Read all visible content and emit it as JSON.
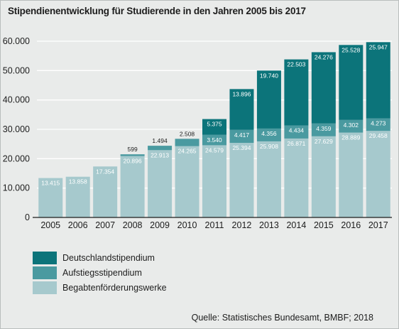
{
  "title": "Stipendienentwicklung für Studierende in den Jahren 2005 bis 2017",
  "source": "Quelle: Statistisches Bundesamt, BMBF; 2018",
  "colors": {
    "background": "#e9ebea",
    "begabten": "#a6c9cd",
    "aufstieg": "#4a9aa0",
    "deutschland": "#0c747a",
    "gridline": "#ffffff",
    "axis": "#1d1d1d"
  },
  "chart_data": {
    "type": "bar",
    "stacked": true,
    "categories": [
      "2005",
      "2006",
      "2007",
      "2008",
      "2009",
      "2010",
      "2011",
      "2012",
      "2013",
      "2014",
      "2015",
      "2016",
      "2017"
    ],
    "series": [
      {
        "name": "Begabtenförderungswerke",
        "color": "#a6c9cd",
        "values": [
          13415,
          13858,
          17354,
          20896,
          22913,
          24265,
          24579,
          25394,
          25908,
          26871,
          27629,
          28889,
          29458
        ],
        "labels": [
          "13.415",
          "13.858",
          "17.354",
          "20.896",
          "22.913",
          "24.265",
          "24.579",
          "25.394",
          "25.908",
          "26.871",
          "27.629",
          "28.889",
          "29.458"
        ]
      },
      {
        "name": "Aufstiegsstipendium",
        "color": "#4a9aa0",
        "values": [
          null,
          null,
          null,
          599,
          1494,
          2508,
          3540,
          4417,
          4356,
          4434,
          4359,
          4302,
          4273
        ],
        "labels": [
          null,
          null,
          null,
          "599",
          "1.494",
          "2.508",
          "3.540",
          "4.417",
          "4.356",
          "4.434",
          "4.359",
          "4.302",
          "4.273"
        ]
      },
      {
        "name": "Deutschlandstipendium",
        "color": "#0c747a",
        "values": [
          null,
          null,
          null,
          null,
          null,
          null,
          5375,
          13896,
          19740,
          22503,
          24276,
          25528,
          25947
        ],
        "labels": [
          null,
          null,
          null,
          null,
          null,
          null,
          "5.375",
          "13.896",
          "19.740",
          "22.503",
          "24.276",
          "25.528",
          "25.947"
        ]
      }
    ],
    "legend_order": [
      "Deutschlandstipendium",
      "Aufstiegsstipendium",
      "Begabtenförderungswerke"
    ],
    "y_ticks": [
      0,
      10000,
      20000,
      30000,
      40000,
      50000,
      60000
    ],
    "y_tick_labels": [
      "0",
      "10.000",
      "20.000",
      "30.000",
      "40.000",
      "50.000",
      "60.000"
    ],
    "ylim": [
      0,
      60000
    ],
    "grid": true,
    "legend_position": "bottom-left"
  }
}
